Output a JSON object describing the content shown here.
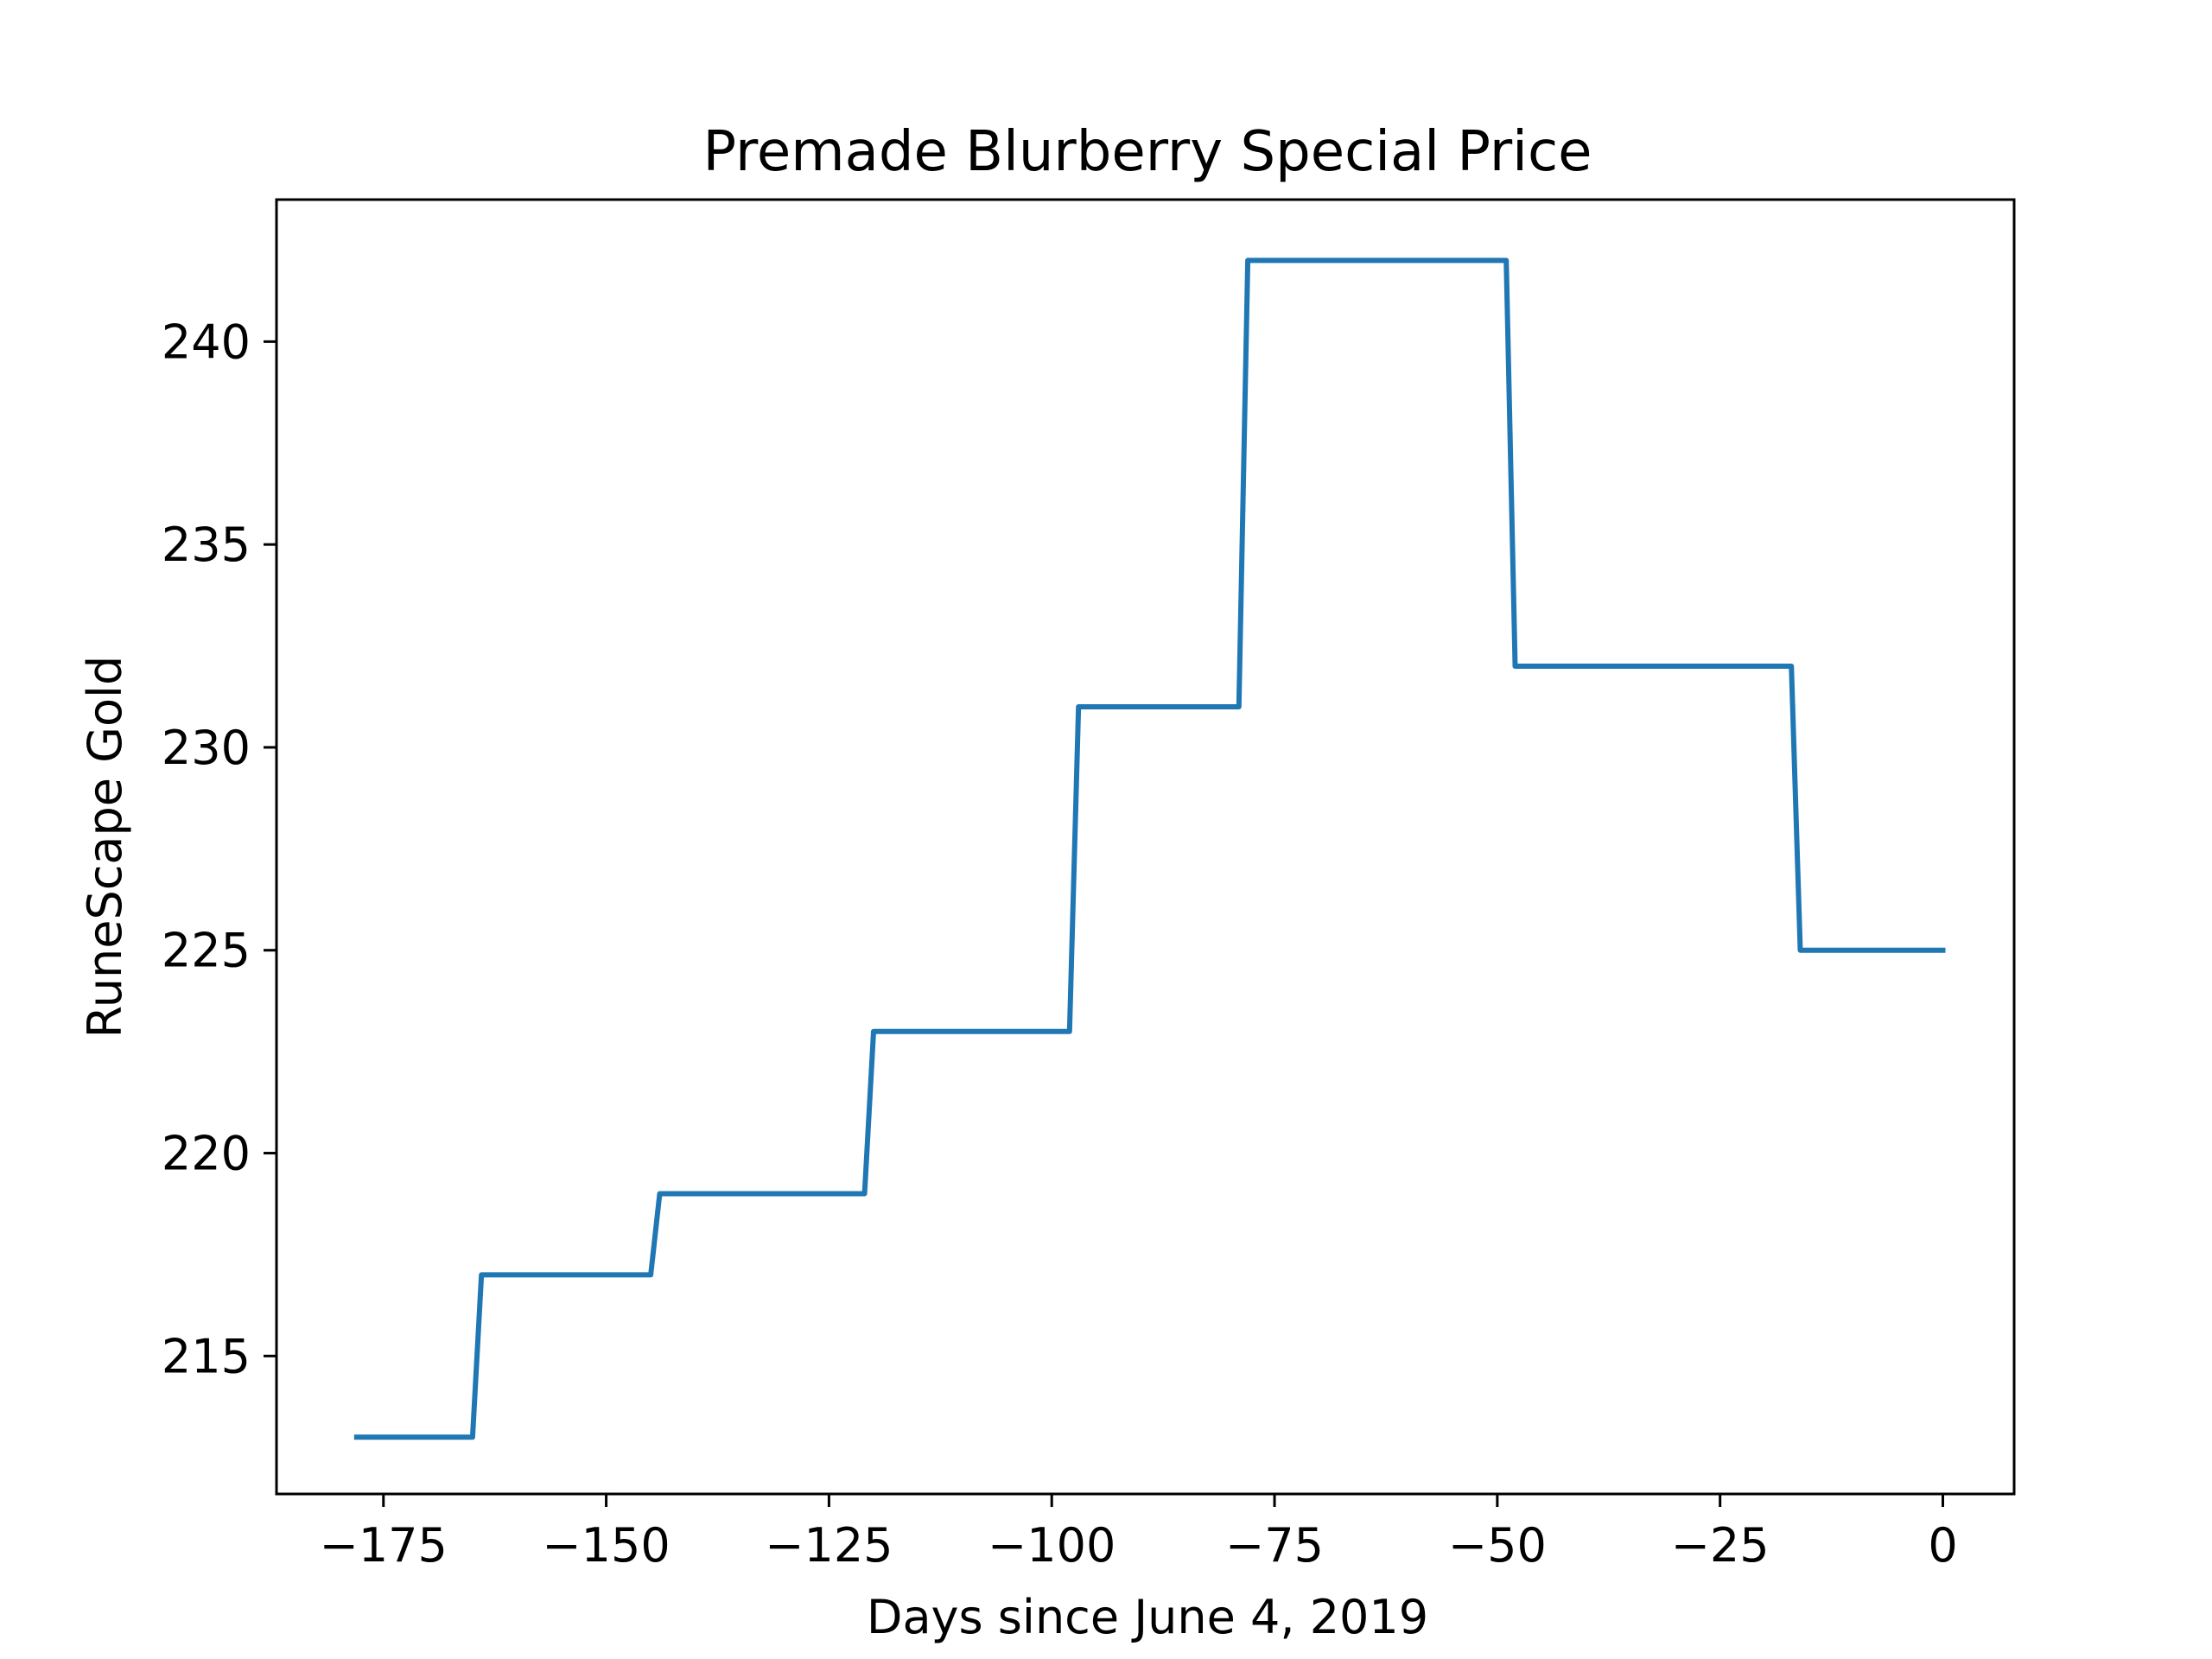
{
  "chart_data": {
    "type": "line",
    "title": "Premade Blurberry Special Price",
    "xlabel": "Days since June 4, 2019",
    "ylabel": "RuneScape Gold",
    "xlim": [
      -187,
      8
    ],
    "ylim": [
      211.6,
      243.5
    ],
    "xticks": [
      -175,
      -150,
      -125,
      -100,
      -75,
      -50,
      -25,
      0
    ],
    "xtick_labels": [
      "−175",
      "−150",
      "−125",
      "−100",
      "−75",
      "−50",
      "−25",
      "0"
    ],
    "yticks": [
      215,
      220,
      225,
      230,
      235,
      240
    ],
    "ytick_labels": [
      "215",
      "220",
      "225",
      "230",
      "235",
      "240"
    ],
    "grid": false,
    "series_color": "#1f77b4",
    "series": [
      {
        "x": [
          -178,
          -165,
          -164,
          -145,
          -144,
          -121,
          -120,
          -98,
          -97,
          -79,
          -78,
          -49,
          -48,
          -17,
          -16,
          0
        ],
        "y": [
          213,
          213,
          217,
          217,
          219,
          219,
          223,
          223,
          231,
          231,
          242,
          242,
          232,
          232,
          225,
          225
        ]
      }
    ]
  }
}
